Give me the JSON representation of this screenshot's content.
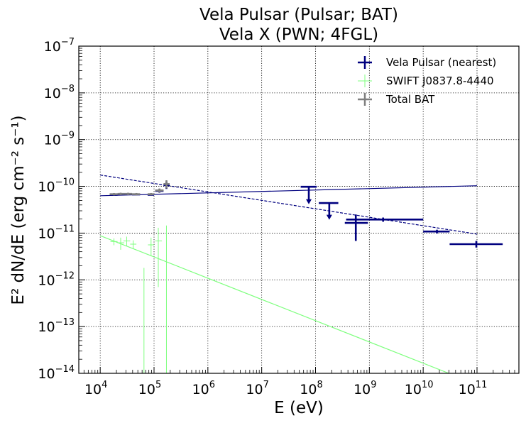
{
  "chart_data": {
    "type": "scatter",
    "title": [
      "Vela Pulsar (Pulsar; BAT)",
      "Vela X (PWN; 4FGL)"
    ],
    "xlabel": "E (eV)",
    "ylabel": "E² dN/dE (erg cm⁻² s⁻¹)",
    "xscale": "log",
    "yscale": "log",
    "xlim": [
      4000,
      600000000000.0
    ],
    "ylim": [
      1e-14,
      1e-07
    ],
    "grid": true,
    "legend_position": "top-right",
    "x_ticks": [
      {
        "v": 10000,
        "mant": "10",
        "exp": "4"
      },
      {
        "v": 100000,
        "mant": "10",
        "exp": "5"
      },
      {
        "v": 1000000,
        "mant": "10",
        "exp": "6"
      },
      {
        "v": 10000000,
        "mant": "10",
        "exp": "7"
      },
      {
        "v": 100000000,
        "mant": "10",
        "exp": "8"
      },
      {
        "v": 1000000000,
        "mant": "10",
        "exp": "9"
      },
      {
        "v": 10000000000,
        "mant": "10",
        "exp": "10"
      },
      {
        "v": 100000000000,
        "mant": "10",
        "exp": "11"
      }
    ],
    "y_ticks": [
      {
        "v": 1e-14,
        "mant": "10",
        "exp": "−14"
      },
      {
        "v": 1e-13,
        "mant": "10",
        "exp": "−13"
      },
      {
        "v": 1e-12,
        "mant": "10",
        "exp": "−12"
      },
      {
        "v": 1e-11,
        "mant": "10",
        "exp": "−11"
      },
      {
        "v": 1e-10,
        "mant": "10",
        "exp": "−10"
      },
      {
        "v": 1e-09,
        "mant": "10",
        "exp": "−9"
      },
      {
        "v": 1e-08,
        "mant": "10",
        "exp": "−8"
      },
      {
        "v": 1e-07,
        "mant": "10",
        "exp": "−7"
      }
    ],
    "series": [
      {
        "name": "Vela Pulsar (nearest)",
        "color": "#00007f",
        "points": [
          {
            "x": 18000.0,
            "y": 6.6e-11,
            "xlo": 15000.0,
            "xhi": 21000.0,
            "ylo": 6.3e-11,
            "yhi": 6.9e-11
          },
          {
            "x": 24000.0,
            "y": 6.7e-11,
            "xlo": 21000.0,
            "xhi": 28000.0,
            "ylo": 6.4e-11,
            "yhi": 7e-11
          },
          {
            "x": 33000.0,
            "y": 6.8e-11,
            "xlo": 28000.0,
            "xhi": 39000.0,
            "ylo": 6.5e-11,
            "yhi": 7.1e-11
          },
          {
            "x": 47000.0,
            "y": 6.7e-11,
            "xlo": 39000.0,
            "xhi": 55000.0,
            "ylo": 6.4e-11,
            "yhi": 7e-11
          },
          {
            "x": 88000.0,
            "y": 6.6e-11,
            "xlo": 76000.0,
            "xhi": 100000.0,
            "ylo": 6.3e-11,
            "yhi": 6.9e-11
          },
          {
            "x": 126000.0,
            "y": 8e-11,
            "xlo": 105000.0,
            "xhi": 150000.0,
            "ylo": 7.3e-11,
            "yhi": 8.7e-11
          },
          {
            "x": 170000.0,
            "y": 1.06e-10,
            "xlo": 150000.0,
            "xhi": 195000.0,
            "ylo": 8.8e-11,
            "yhi": 1.27e-10
          },
          {
            "x": 1800000000.0,
            "y": 1.95e-11,
            "xlo": 370000000.0,
            "xhi": 10000000000.0,
            "ylo": 1.75e-11,
            "yhi": 2.15e-11
          },
          {
            "x": 18000000000.0,
            "y": 1.08e-11,
            "xlo": 10000000000.0,
            "xhi": 31000000000.0,
            "ylo": 9.8e-12,
            "yhi": 1.18e-11
          },
          {
            "x": 97000000000.0,
            "y": 5.8e-12,
            "xlo": 31000000000.0,
            "xhi": 300000000000.0,
            "ylo": 4.9e-12,
            "yhi": 6.8e-12
          },
          {
            "x": 560000000.0,
            "y": 1.65e-11,
            "xlo": 350000000.0,
            "xhi": 940000000.0,
            "ylo": 6.8e-12,
            "yhi": 2.5e-11
          }
        ],
        "upper_limits": [
          {
            "x": 75000000.0,
            "y": 9.8e-11,
            "xlo": 53000000.0,
            "xhi": 105000000.0,
            "yarrow": 4.3e-11
          },
          {
            "x": 180000000.0,
            "y": 4.4e-11,
            "xlo": 115000000.0,
            "xhi": 265000000.0,
            "yarrow": 2e-11
          }
        ],
        "fit_lines": [
          {
            "style": "solid",
            "x": [
              10000.0,
              100000000000.0
            ],
            "y": [
              6.3e-11,
              1.03e-10
            ]
          },
          {
            "style": "dashed",
            "x": [
              10000.0,
              100000000000.0
            ],
            "y": [
              1.75e-10,
              9.5e-12
            ]
          }
        ]
      },
      {
        "name": "SWIFT J0837.8-4440",
        "color": "#7fff7f",
        "points": [
          {
            "x": 18000.0,
            "y": 6.6e-12,
            "xlo": 15500.0,
            "xhi": 21000.0,
            "ylo": 5.5e-12,
            "yhi": 7.7e-12
          },
          {
            "x": 24000.0,
            "y": 6.2e-12,
            "xlo": 21000.0,
            "xhi": 28000.0,
            "ylo": 4.4e-12,
            "yhi": 8e-12
          },
          {
            "x": 31000.0,
            "y": 6.8e-12,
            "xlo": 27000.0,
            "xhi": 36000.0,
            "ylo": 5.2e-12,
            "yhi": 8.4e-12
          },
          {
            "x": 41000.0,
            "y": 5.8e-12,
            "xlo": 36000.0,
            "xhi": 47000.0,
            "ylo": 4.6e-12,
            "yhi": 7e-12
          },
          {
            "x": 65000.0,
            "y": 1.8e-12,
            "xlo": 65000.0,
            "xhi": 65000.0,
            "ylo": 1e-14,
            "yhi": 1.8e-12
          },
          {
            "x": 88000.0,
            "y": 5.6e-12,
            "xlo": 77000.0,
            "xhi": 100000.0,
            "ylo": 3.3e-12,
            "yhi": 8e-12
          },
          {
            "x": 120000.0,
            "y": 6.8e-12,
            "xlo": 105000.0,
            "xhi": 140000.0,
            "ylo": 7e-13,
            "yhi": 1.3e-11
          },
          {
            "x": 170000.0,
            "y": 1.45e-11,
            "xlo": 170000.0,
            "xhi": 170000.0,
            "ylo": 1e-14,
            "yhi": 1.45e-11
          }
        ],
        "fit_lines": [
          {
            "style": "solid",
            "x": [
              10000.0,
              30000000000.0
            ],
            "y": [
              8.8e-12,
              1e-14
            ]
          }
        ]
      },
      {
        "name": "Total BAT",
        "color": "#7f7f7f",
        "points": [
          {
            "x": 18000.0,
            "y": 6.8e-11,
            "xlo": 15000.0,
            "xhi": 21000.0,
            "ylo": 6.4e-11,
            "yhi": 7.2e-11
          },
          {
            "x": 24000.0,
            "y": 6.9e-11,
            "xlo": 21000.0,
            "xhi": 28000.0,
            "ylo": 6.5e-11,
            "yhi": 7.3e-11
          },
          {
            "x": 33000.0,
            "y": 6.9e-11,
            "xlo": 28000.0,
            "xhi": 39000.0,
            "ylo": 6.5e-11,
            "yhi": 7.3e-11
          },
          {
            "x": 47000.0,
            "y": 6.8e-11,
            "xlo": 39000.0,
            "xhi": 55000.0,
            "ylo": 6.4e-11,
            "yhi": 7.2e-11
          },
          {
            "x": 88000.0,
            "y": 6.8e-11,
            "xlo": 76000.0,
            "xhi": 100000.0,
            "ylo": 6.4e-11,
            "yhi": 7.2e-11
          },
          {
            "x": 126000.0,
            "y": 8.2e-11,
            "xlo": 105000.0,
            "xhi": 150000.0,
            "ylo": 7.4e-11,
            "yhi": 9e-11
          },
          {
            "x": 170000.0,
            "y": 1.12e-10,
            "xlo": 150000.0,
            "xhi": 195000.0,
            "ylo": 9e-11,
            "yhi": 1.35e-10
          }
        ]
      }
    ]
  }
}
